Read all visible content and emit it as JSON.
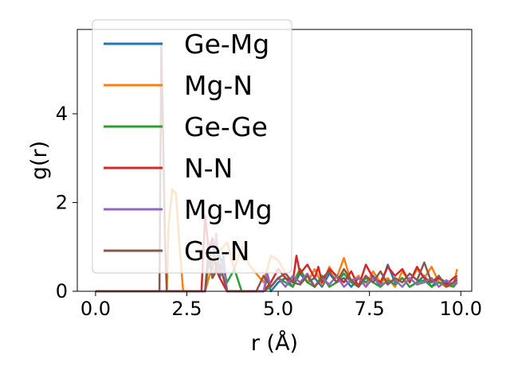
{
  "chart_data": {
    "type": "line",
    "title": "",
    "xlabel": "r (Å)",
    "ylabel": "g(r)",
    "xlim": [
      -0.5,
      10.3
    ],
    "ylim": [
      0,
      5.9
    ],
    "xticks": [
      0.0,
      2.5,
      5.0,
      7.5,
      10.0
    ],
    "xtick_labels": [
      "0.0",
      "2.5",
      "5.0",
      "7.5",
      "10.0"
    ],
    "yticks": [
      0,
      2,
      4
    ],
    "ytick_labels": [
      "0",
      "2",
      "4"
    ],
    "grid": false,
    "legend_position": "upper-left",
    "series": [
      {
        "name": "Ge-Mg",
        "color": "#1f77b4",
        "x": [
          0,
          3.0,
          3.1,
          3.2,
          3.3,
          3.4,
          3.5,
          3.6,
          3.8,
          4.0,
          4.6,
          4.7,
          4.8,
          5.0,
          5.2,
          5.4,
          5.6,
          5.8,
          6.0,
          6.2,
          6.4,
          6.6,
          6.8,
          7.0,
          7.2,
          7.4,
          7.6,
          7.8,
          8.0,
          8.2,
          8.4,
          8.6,
          8.8,
          9.0,
          9.2,
          9.4,
          9.6,
          9.8,
          9.9
        ],
        "y": [
          0,
          0,
          0.9,
          0.5,
          1.2,
          0.3,
          0.8,
          0,
          0,
          0,
          0,
          0.3,
          0,
          0.2,
          0.3,
          0.1,
          0.4,
          0.2,
          0.3,
          0.1,
          0.4,
          0.2,
          0.3,
          0.1,
          0.3,
          0.2,
          0.35,
          0.1,
          0.6,
          0.2,
          0.3,
          0.1,
          0.2,
          0.35,
          0.1,
          0.3,
          0.2,
          0.15,
          0.25
        ]
      },
      {
        "name": "Mg-N",
        "color": "#ff7f0e",
        "x": [
          0,
          1.95,
          2.0,
          2.1,
          2.2,
          2.3,
          2.4,
          2.6,
          3.0,
          3.2,
          3.4,
          3.6,
          3.8,
          4.0,
          4.2,
          4.4,
          4.6,
          4.8,
          5.0,
          5.2,
          5.4,
          5.6,
          5.8,
          6.0,
          6.2,
          6.4,
          6.6,
          6.8,
          7.0,
          7.2,
          7.4,
          7.6,
          7.8,
          8.0,
          8.2,
          8.4,
          8.6,
          8.8,
          9.0,
          9.2,
          9.4,
          9.6,
          9.8,
          9.9
        ],
        "y": [
          0,
          0,
          1.5,
          2.3,
          2.2,
          1.0,
          0,
          0,
          0,
          0.6,
          0.9,
          1.1,
          0.5,
          1.0,
          0.6,
          0.4,
          0.2,
          0.8,
          0.7,
          0.4,
          0.2,
          0.5,
          0.2,
          0.5,
          0.15,
          0.55,
          0.3,
          0.75,
          0.2,
          0.35,
          0.1,
          0.45,
          0.2,
          0.3,
          0.1,
          0.45,
          0.2,
          0.5,
          0.3,
          0.55,
          0.2,
          0.1,
          0.15,
          0.5
        ]
      },
      {
        "name": "Ge-Ge",
        "color": "#2ca02c",
        "x": [
          0,
          3.0,
          3.1,
          3.2,
          3.4,
          3.6,
          3.8,
          4.0,
          4.6,
          4.8,
          5.0,
          5.2,
          5.4,
          5.6,
          5.8,
          6.0,
          6.2,
          6.4,
          6.6,
          6.8,
          7.0,
          7.2,
          7.4,
          7.6,
          7.8,
          8.0,
          8.2,
          8.4,
          8.6,
          8.8,
          9.0,
          9.2,
          9.4,
          9.6,
          9.8,
          9.9
        ],
        "y": [
          0,
          0,
          0.7,
          0.3,
          0.8,
          0.2,
          0.5,
          0,
          0,
          0.1,
          0.3,
          0.2,
          0.1,
          0.5,
          0.2,
          0.1,
          0.35,
          0.1,
          0.2,
          0.4,
          0.2,
          0.1,
          0.3,
          0.2,
          0.1,
          0.25,
          0.15,
          0.3,
          0.1,
          0.2,
          0.25,
          0.1,
          0.2,
          0.15,
          0.1,
          0.2
        ]
      },
      {
        "name": "N-N",
        "color": "#d62728",
        "x": [
          0,
          2.9,
          3.0,
          3.1,
          3.2,
          3.3,
          3.4,
          3.6,
          4.6,
          4.8,
          5.0,
          5.2,
          5.4,
          5.5,
          5.6,
          5.8,
          6.0,
          6.1,
          6.2,
          6.4,
          6.6,
          6.8,
          7.0,
          7.2,
          7.4,
          7.6,
          7.8,
          8.0,
          8.2,
          8.4,
          8.6,
          8.8,
          9.0,
          9.2,
          9.4,
          9.6,
          9.8,
          9.9
        ],
        "y": [
          0,
          0,
          1.7,
          0.9,
          1.2,
          0.5,
          0.3,
          0,
          0,
          0.2,
          0.5,
          0.3,
          0.2,
          0.8,
          0.4,
          0.6,
          0.3,
          0.55,
          0.2,
          0.5,
          0.35,
          0.2,
          0.45,
          0.1,
          0.6,
          0.3,
          0.2,
          0.55,
          0.35,
          0.5,
          0.2,
          0.55,
          0.3,
          0.2,
          0.3,
          0.15,
          0.3,
          0.35
        ]
      },
      {
        "name": "Mg-Mg",
        "color": "#9467bd",
        "x": [
          0,
          3.0,
          3.1,
          3.2,
          3.3,
          3.4,
          3.5,
          3.6,
          4.6,
          4.7,
          4.8,
          5.0,
          5.2,
          5.4,
          5.6,
          5.8,
          6.0,
          6.2,
          6.4,
          6.6,
          6.8,
          7.0,
          7.2,
          7.4,
          7.6,
          7.8,
          8.0,
          8.2,
          8.4,
          8.6,
          8.8,
          9.0,
          9.2,
          9.4,
          9.6,
          9.8,
          9.9
        ],
        "y": [
          0,
          0,
          1.1,
          0.5,
          1.3,
          0.4,
          0.7,
          0,
          0,
          0.4,
          0.1,
          0.3,
          0.1,
          0.35,
          0.2,
          0.4,
          0.1,
          0.3,
          0.15,
          0.35,
          0.1,
          0.25,
          0.3,
          0.1,
          0.3,
          0.15,
          0.2,
          0.25,
          0.1,
          0.3,
          0.15,
          0.2,
          0.3,
          0.1,
          0.25,
          0.15,
          0.2
        ]
      },
      {
        "name": "Ge-N",
        "color": "#8c564b",
        "x": [
          0,
          1.75,
          1.8,
          1.85,
          1.9,
          1.95,
          2.0,
          3.0,
          3.1,
          3.2,
          3.4,
          3.6,
          4.4,
          4.6,
          4.8,
          5.0,
          5.2,
          5.4,
          5.6,
          5.8,
          6.0,
          6.2,
          6.4,
          6.6,
          6.8,
          7.0,
          7.2,
          7.4,
          7.6,
          7.8,
          8.0,
          8.2,
          8.4,
          8.6,
          8.8,
          9.0,
          9.2,
          9.4,
          9.6,
          9.8,
          9.9
        ],
        "y": [
          0,
          0,
          5.6,
          3.5,
          1.2,
          0,
          0,
          0,
          0.9,
          0.3,
          0.6,
          0,
          0,
          0.35,
          0.1,
          0.3,
          0.4,
          0.2,
          0.15,
          0.35,
          0.1,
          0.3,
          0.45,
          0.2,
          0.5,
          0.25,
          0.1,
          0.35,
          0.2,
          0.45,
          0.15,
          0.3,
          0.2,
          0.4,
          0.25,
          0.65,
          0.2,
          0.35,
          0.1,
          0.2,
          0.3
        ]
      }
    ]
  }
}
